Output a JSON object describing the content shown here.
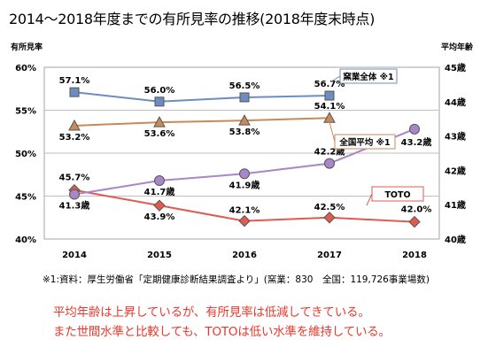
{
  "title": "2014～2018年度までの有所見率の推移(2018年度末時点)",
  "footnote": "※1:資料：厚生労働省「定期健康診断結果調査より」(窯業：830　全国：119,726事業場数)",
  "summary": [
    "平均年齢は上昇しているが、有所見率は低減してきている。",
    "また世間水準と比較しても、TOTOは低い水準を維持している。"
  ],
  "chart_data": {
    "type": "line",
    "x": [
      "2014",
      "2015",
      "2016",
      "2017",
      "2018"
    ],
    "ylabel": "有所見率",
    "y2label": "平均年齢",
    "ylim": [
      40,
      60
    ],
    "y_ticks": [
      "40%",
      "45%",
      "50%",
      "55%",
      "60%"
    ],
    "y2lim": [
      40,
      45
    ],
    "y2_ticks": [
      "40歳",
      "41歳",
      "42歳",
      "43歳",
      "44歳",
      "45歳"
    ],
    "grid": true,
    "series": [
      {
        "name": "窯業全体 ※1",
        "axis": "left",
        "color": "#6e8cbf",
        "marker": "square",
        "values": [
          57.1,
          56.0,
          56.5,
          56.7,
          null
        ],
        "labels": [
          "57.1%",
          "56.0%",
          "56.5%",
          "56.7%",
          null
        ]
      },
      {
        "name": "全国平均 ※1",
        "axis": "left",
        "color": "#c88a58",
        "marker": "triangle",
        "values": [
          53.2,
          53.6,
          53.8,
          54.1,
          null
        ],
        "labels": [
          "53.2%",
          "53.6%",
          "53.8%",
          "54.1%",
          null
        ]
      },
      {
        "name": "TOTO",
        "axis": "left",
        "color": "#e05a52",
        "marker": "diamond",
        "values": [
          45.7,
          43.9,
          42.1,
          42.5,
          42.0
        ],
        "labels": [
          "45.7%",
          "43.9%",
          "42.1%",
          "42.5%",
          "42.0%"
        ]
      },
      {
        "name": "平均年齢",
        "axis": "right",
        "color": "#a886c8",
        "marker": "circle",
        "values": [
          41.3,
          41.7,
          41.9,
          42.2,
          43.2
        ],
        "labels": [
          "41.3歳",
          "41.7歳",
          "41.9歳",
          "42.2歳",
          "43.2歳"
        ]
      }
    ],
    "legend_callouts": [
      "窯業全体 ※1",
      "全国平均 ※1",
      "TOTO"
    ]
  }
}
